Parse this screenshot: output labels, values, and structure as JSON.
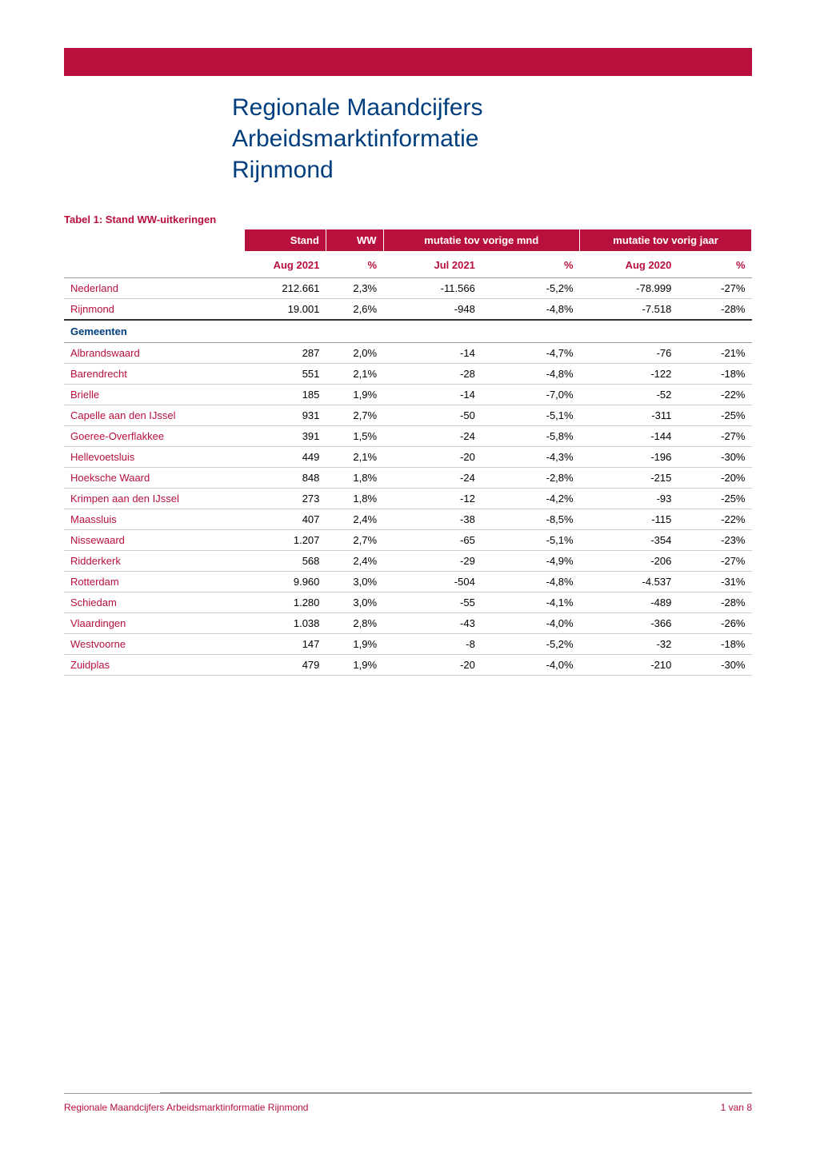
{
  "title_line1": "Regionale Maandcijfers",
  "title_line2": "Arbeidsmarktinformatie",
  "title_line3": "Rijnmond",
  "table_title": "Tabel 1: Stand WW-uitkeringen",
  "headers": {
    "stand": "Stand",
    "ww": "WW",
    "mutatie_mnd": "mutatie tov vorige mnd",
    "mutatie_jaar": "mutatie tov vorig jaar"
  },
  "sub_headers": {
    "stand": "Aug 2021",
    "ww": "%",
    "mnd_period": "Jul  2021",
    "mnd_pct": "%",
    "jaar_period": "Aug 2020",
    "jaar_pct": "%"
  },
  "section_label": "Gemeenten",
  "top_rows": [
    {
      "name": "Nederland",
      "stand": "212.661",
      "ww": "2,3%",
      "mnd_val": "-11.566",
      "mnd_pct": "-5,2%",
      "jaar_val": "-78.999",
      "jaar_pct": "-27%"
    },
    {
      "name": "Rijnmond",
      "stand": "19.001",
      "ww": "2,6%",
      "mnd_val": "-948",
      "mnd_pct": "-4,8%",
      "jaar_val": "-7.518",
      "jaar_pct": "-28%"
    }
  ],
  "rows": [
    {
      "name": "Albrandswaard",
      "stand": "287",
      "ww": "2,0%",
      "mnd_val": "-14",
      "mnd_pct": "-4,7%",
      "jaar_val": "-76",
      "jaar_pct": "-21%"
    },
    {
      "name": "Barendrecht",
      "stand": "551",
      "ww": "2,1%",
      "mnd_val": "-28",
      "mnd_pct": "-4,8%",
      "jaar_val": "-122",
      "jaar_pct": "-18%"
    },
    {
      "name": "Brielle",
      "stand": "185",
      "ww": "1,9%",
      "mnd_val": "-14",
      "mnd_pct": "-7,0%",
      "jaar_val": "-52",
      "jaar_pct": "-22%"
    },
    {
      "name": "Capelle aan den IJssel",
      "stand": "931",
      "ww": "2,7%",
      "mnd_val": "-50",
      "mnd_pct": "-5,1%",
      "jaar_val": "-311",
      "jaar_pct": "-25%"
    },
    {
      "name": "Goeree-Overflakkee",
      "stand": "391",
      "ww": "1,5%",
      "mnd_val": "-24",
      "mnd_pct": "-5,8%",
      "jaar_val": "-144",
      "jaar_pct": "-27%"
    },
    {
      "name": "Hellevoetsluis",
      "stand": "449",
      "ww": "2,1%",
      "mnd_val": "-20",
      "mnd_pct": "-4,3%",
      "jaar_val": "-196",
      "jaar_pct": "-30%"
    },
    {
      "name": "Hoeksche Waard",
      "stand": "848",
      "ww": "1,8%",
      "mnd_val": "-24",
      "mnd_pct": "-2,8%",
      "jaar_val": "-215",
      "jaar_pct": "-20%"
    },
    {
      "name": "Krimpen aan den IJssel",
      "stand": "273",
      "ww": "1,8%",
      "mnd_val": "-12",
      "mnd_pct": "-4,2%",
      "jaar_val": "-93",
      "jaar_pct": "-25%"
    },
    {
      "name": "Maassluis",
      "stand": "407",
      "ww": "2,4%",
      "mnd_val": "-38",
      "mnd_pct": "-8,5%",
      "jaar_val": "-115",
      "jaar_pct": "-22%"
    },
    {
      "name": "Nissewaard",
      "stand": "1.207",
      "ww": "2,7%",
      "mnd_val": "-65",
      "mnd_pct": "-5,1%",
      "jaar_val": "-354",
      "jaar_pct": "-23%"
    },
    {
      "name": "Ridderkerk",
      "stand": "568",
      "ww": "2,4%",
      "mnd_val": "-29",
      "mnd_pct": "-4,9%",
      "jaar_val": "-206",
      "jaar_pct": "-27%"
    },
    {
      "name": "Rotterdam",
      "stand": "9.960",
      "ww": "3,0%",
      "mnd_val": "-504",
      "mnd_pct": "-4,8%",
      "jaar_val": "-4.537",
      "jaar_pct": "-31%"
    },
    {
      "name": "Schiedam",
      "stand": "1.280",
      "ww": "3,0%",
      "mnd_val": "-55",
      "mnd_pct": "-4,1%",
      "jaar_val": "-489",
      "jaar_pct": "-28%"
    },
    {
      "name": "Vlaardingen",
      "stand": "1.038",
      "ww": "2,8%",
      "mnd_val": "-43",
      "mnd_pct": "-4,0%",
      "jaar_val": "-366",
      "jaar_pct": "-26%"
    },
    {
      "name": "Westvoorne",
      "stand": "147",
      "ww": "1,9%",
      "mnd_val": "-8",
      "mnd_pct": "-5,2%",
      "jaar_val": "-32",
      "jaar_pct": "-18%"
    },
    {
      "name": "Zuidplas",
      "stand": "479",
      "ww": "1,9%",
      "mnd_val": "-20",
      "mnd_pct": "-4,0%",
      "jaar_val": "-210",
      "jaar_pct": "-30%"
    }
  ],
  "footer": {
    "left": "Regionale Maandcijfers Arbeidsmarktinformatie Rijnmond",
    "right": "1 van 8"
  },
  "colors": {
    "brand_red": "#b8103c",
    "brand_blue": "#003e7e",
    "text": "#000000",
    "border": "#cccccc",
    "border_dark": "#333333",
    "background": "#ffffff"
  },
  "table_style": {
    "type": "table",
    "font_size": 13,
    "header_bg": "#b8103c",
    "header_color": "#ffffff",
    "name_color": "#b8103c",
    "section_color": "#003e7e",
    "row_border": "#cccccc"
  }
}
